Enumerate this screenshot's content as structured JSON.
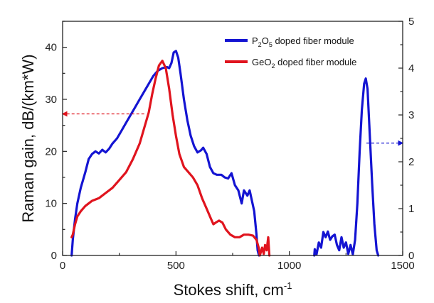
{
  "chart_data": {
    "type": "line",
    "xlabel": "Stokes shift, cm",
    "xlabel_superscript": "-1",
    "ylabel": "Raman gain, dB/(km*W)",
    "xlim": [
      0,
      1500
    ],
    "ylim_left": [
      0,
      45
    ],
    "ylim_right": [
      0,
      5
    ],
    "x_ticks": [
      "0",
      "500",
      "1000",
      "1500"
    ],
    "y_left_ticks": [
      "0",
      "10",
      "20",
      "30",
      "40"
    ],
    "y_right_ticks": [
      "0",
      "1",
      "2",
      "3",
      "4",
      "5"
    ],
    "legend_placement": "top-right",
    "grid": false,
    "series": [
      {
        "name": "P2O5 doped fiber module",
        "legend_parts": [
          "P",
          "2",
          "O",
          "5",
          " doped fiber module"
        ],
        "color": "#1414d2",
        "axis": "left",
        "segments": [
          [
            [
              40,
              0
            ],
            [
              45,
              3
            ],
            [
              55,
              7
            ],
            [
              65,
              10
            ],
            [
              80,
              13
            ],
            [
              100,
              16
            ],
            [
              115,
              18.5
            ],
            [
              130,
              19.5
            ],
            [
              145,
              20
            ],
            [
              160,
              19.6
            ],
            [
              175,
              20.3
            ],
            [
              190,
              19.8
            ],
            [
              205,
              20.5
            ],
            [
              220,
              21.5
            ],
            [
              240,
              22.5
            ],
            [
              260,
              24
            ],
            [
              280,
              25.5
            ],
            [
              300,
              27
            ],
            [
              320,
              28.5
            ],
            [
              340,
              30
            ],
            [
              360,
              31.5
            ],
            [
              380,
              33
            ],
            [
              400,
              34.5
            ],
            [
              420,
              35.5
            ],
            [
              440,
              36
            ],
            [
              460,
              36.2
            ],
            [
              470,
              36
            ],
            [
              480,
              37
            ],
            [
              490,
              39
            ],
            [
              500,
              39.3
            ],
            [
              510,
              38
            ],
            [
              520,
              35
            ],
            [
              535,
              30
            ],
            [
              550,
              26
            ],
            [
              565,
              23
            ],
            [
              580,
              21
            ],
            [
              595,
              19.8
            ],
            [
              610,
              20.2
            ],
            [
              620,
              20.7
            ],
            [
              635,
              19.5
            ],
            [
              650,
              17
            ],
            [
              665,
              15.8
            ],
            [
              680,
              15.5
            ],
            [
              700,
              15.5
            ],
            [
              715,
              15
            ],
            [
              730,
              14.8
            ],
            [
              745,
              15.8
            ],
            [
              760,
              13.5
            ],
            [
              775,
              12.5
            ],
            [
              790,
              10
            ],
            [
              800,
              12.5
            ],
            [
              815,
              11.5
            ],
            [
              825,
              12.5
            ],
            [
              835,
              10.5
            ],
            [
              845,
              8.5
            ],
            [
              855,
              4
            ],
            [
              860,
              1
            ],
            [
              866,
              0
            ]
          ],
          [
            [
              1110,
              0
            ],
            [
              1112,
              1.2
            ],
            [
              1120,
              0.2
            ],
            [
              1130,
              2.5
            ],
            [
              1140,
              1.5
            ],
            [
              1150,
              4.5
            ],
            [
              1160,
              3.5
            ],
            [
              1170,
              4.6
            ],
            [
              1180,
              3
            ],
            [
              1190,
              3.7
            ],
            [
              1200,
              4
            ],
            [
              1210,
              2
            ],
            [
              1220,
              1
            ],
            [
              1230,
              3.5
            ],
            [
              1240,
              1.5
            ],
            [
              1250,
              2.5
            ],
            [
              1260,
              0.3
            ],
            [
              1270,
              2
            ],
            [
              1280,
              0.2
            ],
            [
              1290,
              3
            ],
            [
              1300,
              10
            ],
            [
              1310,
              20
            ],
            [
              1320,
              28
            ],
            [
              1330,
              33
            ],
            [
              1337,
              34
            ],
            [
              1345,
              32
            ],
            [
              1355,
              23
            ],
            [
              1365,
              14
            ],
            [
              1375,
              6
            ],
            [
              1385,
              1
            ],
            [
              1392,
              0
            ]
          ]
        ]
      },
      {
        "name": "GeO2 doped fiber module",
        "legend_parts": [
          "GeO",
          "2",
          " doped fiber module"
        ],
        "color": "#e0141e",
        "axis": "left",
        "segments": [
          [
            [
              40,
              3.5
            ],
            [
              45,
              4
            ],
            [
              55,
              6
            ],
            [
              65,
              7.5
            ],
            [
              80,
              8.5
            ],
            [
              100,
              9.5
            ],
            [
              130,
              10.5
            ],
            [
              160,
              11
            ],
            [
              190,
              12
            ],
            [
              220,
              13
            ],
            [
              250,
              14.5
            ],
            [
              280,
              16
            ],
            [
              310,
              18.5
            ],
            [
              340,
              21.5
            ],
            [
              360,
              24.5
            ],
            [
              380,
              27.5
            ],
            [
              395,
              31
            ],
            [
              410,
              34
            ],
            [
              425,
              36.5
            ],
            [
              440,
              37.4
            ],
            [
              455,
              36
            ],
            [
              470,
              32
            ],
            [
              485,
              27
            ],
            [
              500,
              23
            ],
            [
              515,
              19.5
            ],
            [
              535,
              17
            ],
            [
              555,
              16
            ],
            [
              575,
              15
            ],
            [
              595,
              13.5
            ],
            [
              615,
              11
            ],
            [
              635,
              9
            ],
            [
              655,
              7
            ],
            [
              665,
              6
            ],
            [
              675,
              6.3
            ],
            [
              690,
              6.7
            ],
            [
              705,
              6.3
            ],
            [
              720,
              5
            ],
            [
              740,
              4
            ],
            [
              760,
              3.5
            ],
            [
              780,
              3.5
            ],
            [
              800,
              4
            ],
            [
              820,
              4
            ],
            [
              840,
              3.8
            ],
            [
              855,
              3
            ],
            [
              865,
              1.5
            ],
            [
              870,
              0
            ],
            [
              880,
              1.5
            ],
            [
              887,
              0.3
            ],
            [
              893,
              2
            ],
            [
              900,
              1
            ],
            [
              907,
              3.5
            ],
            [
              912,
              0
            ]
          ]
        ]
      }
    ],
    "arrows": [
      {
        "direction": "left",
        "color": "#e0141e",
        "y": 27.2,
        "x_from": 360,
        "x_to": 0
      },
      {
        "direction": "right",
        "color": "#1414d2",
        "y": 2.4,
        "x_from": 1340,
        "x_to": 1500
      }
    ]
  }
}
